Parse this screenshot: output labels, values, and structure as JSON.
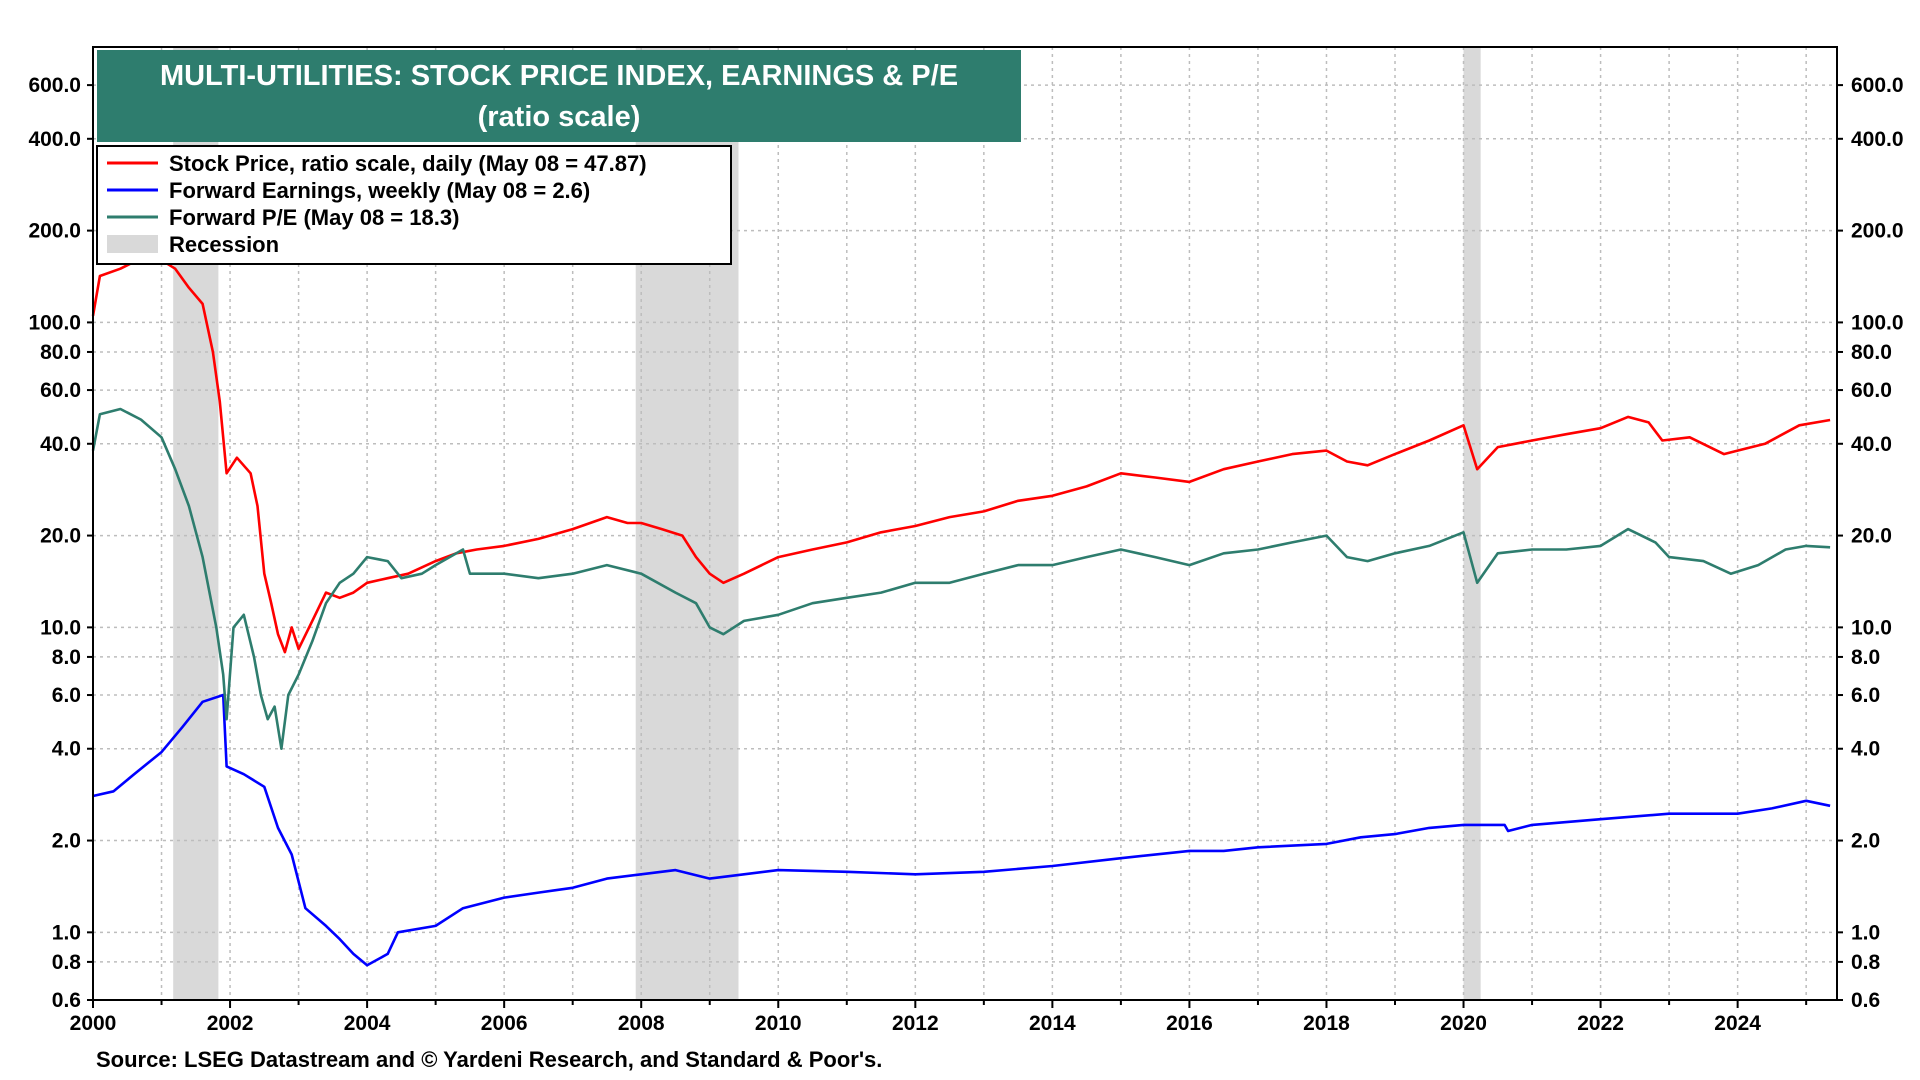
{
  "colors": {
    "stock_price": "#ff0000",
    "forward_earnings": "#0000ff",
    "forward_pe": "#2e7d6e",
    "recession": "#d9d9d9",
    "title_bg": "#2e7d6e",
    "grid": "#bdbdbd"
  },
  "chart_data": {
    "type": "line",
    "title": "MULTI-UTILITIES: STOCK PRICE INDEX, EARNINGS & P/E",
    "subtitle": "(ratio scale)",
    "source": "Source: LSEG Datastream and © Yardeni Research, and Standard & Poor's.",
    "y_scale": "log",
    "xlim": [
      2000,
      2025.45
    ],
    "ylim": [
      0.6,
      800
    ],
    "grid": true,
    "legend_position": "top-left",
    "x_ticks": [
      "2000",
      "2002",
      "2004",
      "2006",
      "2008",
      "2010",
      "2012",
      "2014",
      "2016",
      "2018",
      "2020",
      "2022",
      "2024"
    ],
    "y_ticks": [
      "0.6",
      "0.8",
      "1.0",
      "2.0",
      "4.0",
      "6.0",
      "8.0",
      "10.0",
      "20.0",
      "40.0",
      "60.0",
      "80.0",
      "100.0",
      "200.0",
      "400.0",
      "600.0"
    ],
    "recessions": [
      [
        2001.17,
        2001.83
      ],
      [
        2007.92,
        2009.42
      ],
      [
        2020.0,
        2020.25
      ]
    ],
    "series": [
      {
        "name": "Stock Price, ratio scale, daily (May 08 = 47.87)",
        "key": "stock_price",
        "points": [
          [
            2000.0,
            105
          ],
          [
            2000.1,
            142
          ],
          [
            2000.4,
            150
          ],
          [
            2000.6,
            158
          ],
          [
            2000.8,
            165
          ],
          [
            2001.0,
            160
          ],
          [
            2001.2,
            150
          ],
          [
            2001.4,
            130
          ],
          [
            2001.6,
            115
          ],
          [
            2001.75,
            80
          ],
          [
            2001.85,
            55
          ],
          [
            2001.95,
            32
          ],
          [
            2002.1,
            36
          ],
          [
            2002.3,
            32
          ],
          [
            2002.4,
            25
          ],
          [
            2002.5,
            15
          ],
          [
            2002.6,
            12
          ],
          [
            2002.7,
            9.5
          ],
          [
            2002.8,
            8.3
          ],
          [
            2002.9,
            10
          ],
          [
            2003.0,
            8.5
          ],
          [
            2003.2,
            10.5
          ],
          [
            2003.4,
            13
          ],
          [
            2003.6,
            12.5
          ],
          [
            2003.8,
            13
          ],
          [
            2004.0,
            14
          ],
          [
            2004.3,
            14.5
          ],
          [
            2004.6,
            15
          ],
          [
            2005.0,
            16.5
          ],
          [
            2005.3,
            17.5
          ],
          [
            2005.6,
            18
          ],
          [
            2006.0,
            18.5
          ],
          [
            2006.5,
            19.5
          ],
          [
            2007.0,
            21
          ],
          [
            2007.5,
            23
          ],
          [
            2007.8,
            22
          ],
          [
            2008.0,
            22
          ],
          [
            2008.3,
            21
          ],
          [
            2008.6,
            20
          ],
          [
            2008.8,
            17
          ],
          [
            2009.0,
            15
          ],
          [
            2009.2,
            14
          ],
          [
            2009.5,
            15
          ],
          [
            2010.0,
            17
          ],
          [
            2010.5,
            18
          ],
          [
            2011.0,
            19
          ],
          [
            2011.5,
            20.5
          ],
          [
            2012.0,
            21.5
          ],
          [
            2012.5,
            23
          ],
          [
            2013.0,
            24
          ],
          [
            2013.5,
            26
          ],
          [
            2014.0,
            27
          ],
          [
            2014.5,
            29
          ],
          [
            2015.0,
            32
          ],
          [
            2015.5,
            31
          ],
          [
            2016.0,
            30
          ],
          [
            2016.5,
            33
          ],
          [
            2017.0,
            35
          ],
          [
            2017.5,
            37
          ],
          [
            2018.0,
            38
          ],
          [
            2018.3,
            35
          ],
          [
            2018.6,
            34
          ],
          [
            2019.0,
            37
          ],
          [
            2019.5,
            41
          ],
          [
            2020.0,
            46
          ],
          [
            2020.2,
            33
          ],
          [
            2020.5,
            39
          ],
          [
            2021.0,
            41
          ],
          [
            2021.5,
            43
          ],
          [
            2022.0,
            45
          ],
          [
            2022.4,
            49
          ],
          [
            2022.7,
            47
          ],
          [
            2022.9,
            41
          ],
          [
            2023.3,
            42
          ],
          [
            2023.8,
            37
          ],
          [
            2024.0,
            38
          ],
          [
            2024.4,
            40
          ],
          [
            2024.9,
            46
          ],
          [
            2025.35,
            47.87
          ]
        ]
      },
      {
        "name": "Forward Earnings, weekly (May 08 = 2.6)",
        "key": "forward_earnings",
        "points": [
          [
            2000.0,
            2.8
          ],
          [
            2000.3,
            2.9
          ],
          [
            2000.6,
            3.3
          ],
          [
            2001.0,
            3.9
          ],
          [
            2001.3,
            4.7
          ],
          [
            2001.6,
            5.7
          ],
          [
            2001.9,
            6.0
          ],
          [
            2001.95,
            3.5
          ],
          [
            2002.2,
            3.3
          ],
          [
            2002.5,
            3.0
          ],
          [
            2002.7,
            2.2
          ],
          [
            2002.9,
            1.8
          ],
          [
            2003.1,
            1.2
          ],
          [
            2003.4,
            1.05
          ],
          [
            2003.6,
            0.95
          ],
          [
            2003.8,
            0.85
          ],
          [
            2004.0,
            0.78
          ],
          [
            2004.3,
            0.85
          ],
          [
            2004.45,
            1.0
          ],
          [
            2005.0,
            1.05
          ],
          [
            2005.4,
            1.2
          ],
          [
            2006.0,
            1.3
          ],
          [
            2006.5,
            1.35
          ],
          [
            2007.0,
            1.4
          ],
          [
            2007.5,
            1.5
          ],
          [
            2008.0,
            1.55
          ],
          [
            2008.5,
            1.6
          ],
          [
            2009.0,
            1.5
          ],
          [
            2009.5,
            1.55
          ],
          [
            2010.0,
            1.6
          ],
          [
            2011.0,
            1.58
          ],
          [
            2012.0,
            1.55
          ],
          [
            2013.0,
            1.58
          ],
          [
            2014.0,
            1.65
          ],
          [
            2015.0,
            1.75
          ],
          [
            2016.0,
            1.85
          ],
          [
            2016.5,
            1.85
          ],
          [
            2017.0,
            1.9
          ],
          [
            2018.0,
            1.95
          ],
          [
            2018.5,
            2.05
          ],
          [
            2019.0,
            2.1
          ],
          [
            2019.5,
            2.2
          ],
          [
            2020.0,
            2.25
          ],
          [
            2020.6,
            2.25
          ],
          [
            2020.65,
            2.15
          ],
          [
            2021.0,
            2.25
          ],
          [
            2022.0,
            2.35
          ],
          [
            2023.0,
            2.45
          ],
          [
            2024.0,
            2.45
          ],
          [
            2024.5,
            2.55
          ],
          [
            2025.0,
            2.7
          ],
          [
            2025.35,
            2.6
          ]
        ]
      },
      {
        "name": "Forward P/E (May 08 = 18.3)",
        "key": "forward_pe",
        "points": [
          [
            2000.0,
            38
          ],
          [
            2000.1,
            50
          ],
          [
            2000.4,
            52
          ],
          [
            2000.7,
            48
          ],
          [
            2001.0,
            42
          ],
          [
            2001.2,
            33
          ],
          [
            2001.4,
            25
          ],
          [
            2001.6,
            17
          ],
          [
            2001.8,
            10
          ],
          [
            2001.9,
            7
          ],
          [
            2001.95,
            5
          ],
          [
            2002.05,
            10
          ],
          [
            2002.2,
            11
          ],
          [
            2002.35,
            8
          ],
          [
            2002.45,
            6
          ],
          [
            2002.55,
            5
          ],
          [
            2002.65,
            5.5
          ],
          [
            2002.75,
            4
          ],
          [
            2002.85,
            6
          ],
          [
            2003.0,
            7
          ],
          [
            2003.2,
            9
          ],
          [
            2003.4,
            12
          ],
          [
            2003.6,
            14
          ],
          [
            2003.8,
            15
          ],
          [
            2004.0,
            17
          ],
          [
            2004.3,
            16.5
          ],
          [
            2004.5,
            14.5
          ],
          [
            2004.8,
            15
          ],
          [
            2005.0,
            16
          ],
          [
            2005.4,
            18
          ],
          [
            2005.5,
            15
          ],
          [
            2006.0,
            15
          ],
          [
            2006.5,
            14.5
          ],
          [
            2007.0,
            15
          ],
          [
            2007.5,
            16
          ],
          [
            2008.0,
            15
          ],
          [
            2008.5,
            13
          ],
          [
            2008.8,
            12
          ],
          [
            2009.0,
            10
          ],
          [
            2009.2,
            9.5
          ],
          [
            2009.5,
            10.5
          ],
          [
            2010.0,
            11
          ],
          [
            2010.5,
            12
          ],
          [
            2011.0,
            12.5
          ],
          [
            2011.5,
            13
          ],
          [
            2012.0,
            14
          ],
          [
            2012.5,
            14
          ],
          [
            2013.0,
            15
          ],
          [
            2013.5,
            16
          ],
          [
            2014.0,
            16
          ],
          [
            2014.5,
            17
          ],
          [
            2015.0,
            18
          ],
          [
            2015.5,
            17
          ],
          [
            2016.0,
            16
          ],
          [
            2016.5,
            17.5
          ],
          [
            2017.0,
            18
          ],
          [
            2017.5,
            19
          ],
          [
            2018.0,
            20
          ],
          [
            2018.3,
            17
          ],
          [
            2018.6,
            16.5
          ],
          [
            2019.0,
            17.5
          ],
          [
            2019.5,
            18.5
          ],
          [
            2020.0,
            20.5
          ],
          [
            2020.2,
            14
          ],
          [
            2020.5,
            17.5
          ],
          [
            2021.0,
            18
          ],
          [
            2021.5,
            18
          ],
          [
            2022.0,
            18.5
          ],
          [
            2022.4,
            21
          ],
          [
            2022.8,
            19
          ],
          [
            2023.0,
            17
          ],
          [
            2023.5,
            16.5
          ],
          [
            2023.9,
            15
          ],
          [
            2024.3,
            16
          ],
          [
            2024.7,
            18
          ],
          [
            2025.0,
            18.5
          ],
          [
            2025.35,
            18.3
          ]
        ]
      }
    ],
    "legend": [
      {
        "label": "Stock Price, ratio scale, daily (May 08 = 47.87)",
        "color_key": "stock_price",
        "kind": "line"
      },
      {
        "label": "Forward Earnings, weekly (May 08 = 2.6)",
        "color_key": "forward_earnings",
        "kind": "line"
      },
      {
        "label": "Forward P/E (May 08 = 18.3)",
        "color_key": "forward_pe",
        "kind": "line"
      },
      {
        "label": "Recession",
        "color_key": "recession",
        "kind": "box"
      }
    ]
  }
}
